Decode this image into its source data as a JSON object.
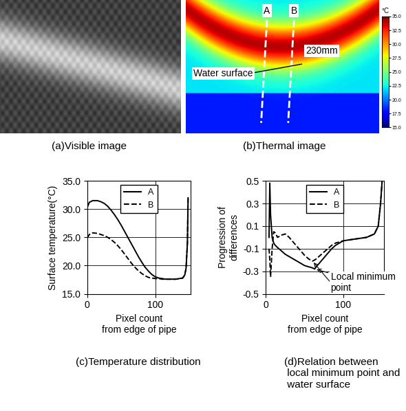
{
  "images": [
    {
      "caption": "(a)Visible image"
    },
    {
      "caption": "(b)Thermal image",
      "lines": [
        "A",
        "B"
      ],
      "annotations": [
        "Water surface",
        "230mm"
      ],
      "color_bar": {
        "unit": "°C",
        "range": [
          15,
          35
        ],
        "ticks": [
          {
            "value": 15,
            "label": "15.0"
          },
          {
            "value": 17.5,
            "label": "17.5"
          },
          {
            "value": 20,
            "label": "20.0"
          },
          {
            "value": 22.5,
            "label": "22.5"
          },
          {
            "value": 25,
            "label": "25.0"
          },
          {
            "value": 27.5,
            "label": "27.5"
          },
          {
            "value": 30,
            "label": "30.0"
          },
          {
            "value": 32.5,
            "label": "32.5"
          },
          {
            "value": 35,
            "label": "35.0"
          }
        ]
      }
    }
  ],
  "chart_data": [
    {
      "type": "line",
      "caption": "(c)Temperature distribution",
      "x_label": "Pixel count\nfrom edge of pipe",
      "y_label": "Surface temperature(°C)",
      "x": [
        0,
        3,
        8,
        15,
        20,
        25,
        30,
        35,
        40,
        45,
        50,
        55,
        60,
        65,
        70,
        75,
        80,
        85,
        90,
        95,
        100,
        105,
        110,
        115,
        120,
        125,
        130,
        135,
        140,
        143,
        145,
        147,
        148
      ],
      "xlim": [
        0,
        152
      ],
      "xticks": [
        0,
        100
      ],
      "ylim": [
        15,
        35
      ],
      "yticks": [
        {
          "value": 15,
          "label": "15.0"
        },
        {
          "value": 20,
          "label": "20.0"
        },
        {
          "value": 25,
          "label": "25.0"
        },
        {
          "value": 30,
          "label": "30.0"
        },
        {
          "value": 35,
          "label": "35.0"
        }
      ],
      "grid": true,
      "legend": "upper center",
      "series": [
        {
          "name": "A",
          "color": "#000000",
          "line_style": "solid",
          "values": [
            30.3,
            31.2,
            31.5,
            31.5,
            31.3,
            31.0,
            30.5,
            29.8,
            29.0,
            28.1,
            27.1,
            26.0,
            24.9,
            23.8,
            22.7,
            21.6,
            20.6,
            19.7,
            19.0,
            18.4,
            18.0,
            17.8,
            17.7,
            17.6,
            17.6,
            17.6,
            17.6,
            17.7,
            17.8,
            18.3,
            19.5,
            24.0,
            32.0
          ]
        },
        {
          "name": "B",
          "color": "#000000",
          "line_style": "dashed",
          "values": [
            24.9,
            25.5,
            25.8,
            25.7,
            25.5,
            25.3,
            25.0,
            24.6,
            24.1,
            23.5,
            22.8,
            22.0,
            21.2,
            20.4,
            19.7,
            19.1,
            18.6,
            18.2,
            17.9,
            17.8,
            17.7,
            17.7,
            17.6,
            17.6,
            17.6,
            17.6,
            17.6,
            17.7,
            17.8,
            18.3,
            19.5,
            24.0,
            32.0
          ]
        }
      ]
    },
    {
      "type": "line",
      "caption": "(d)Relation between\n local minimum point and\n water surface",
      "x_label": "Pixel count\nfrom edge of pipe",
      "y_label": "Progression of\ndifferences",
      "annotation": "Local minimum\npoint",
      "x": [
        4,
        5,
        6,
        8,
        10,
        12,
        15,
        20,
        25,
        30,
        35,
        40,
        45,
        50,
        55,
        60,
        63,
        65,
        70,
        75,
        80,
        85,
        90,
        95,
        100,
        110,
        120,
        130,
        140,
        145,
        148,
        150
      ],
      "xlim": [
        0,
        152
      ],
      "xticks": [
        0,
        100
      ],
      "ylim": [
        -0.5,
        0.5
      ],
      "yticks": [
        -0.5,
        -0.3,
        -0.1,
        0.1,
        0.3,
        0.5
      ],
      "grid": true,
      "legend": "upper center",
      "series": [
        {
          "name": "A",
          "color": "#000000",
          "line_style": "solid",
          "values": [
            0.0,
            0.48,
            0.2,
            0.0,
            -0.05,
            -0.07,
            -0.09,
            -0.12,
            -0.15,
            -0.17,
            -0.19,
            -0.21,
            -0.23,
            -0.25,
            -0.26,
            -0.27,
            -0.28,
            -0.26,
            -0.22,
            -0.18,
            -0.14,
            -0.1,
            -0.07,
            -0.05,
            -0.03,
            -0.02,
            -0.01,
            0.0,
            0.03,
            0.1,
            0.3,
            0.5
          ]
        },
        {
          "name": "B",
          "color": "#000000",
          "line_style": "dashed",
          "values": [
            -0.1,
            -0.2,
            -0.35,
            -0.1,
            0.05,
            0.04,
            0.0,
            0.02,
            0.03,
            0.0,
            -0.04,
            -0.08,
            -0.12,
            -0.16,
            -0.19,
            -0.21,
            -0.2,
            -0.19,
            -0.16,
            -0.13,
            -0.1,
            -0.07,
            -0.05,
            -0.04,
            -0.03,
            -0.02,
            -0.01,
            0.0,
            0.03,
            0.1,
            0.3,
            0.5
          ]
        }
      ]
    }
  ]
}
